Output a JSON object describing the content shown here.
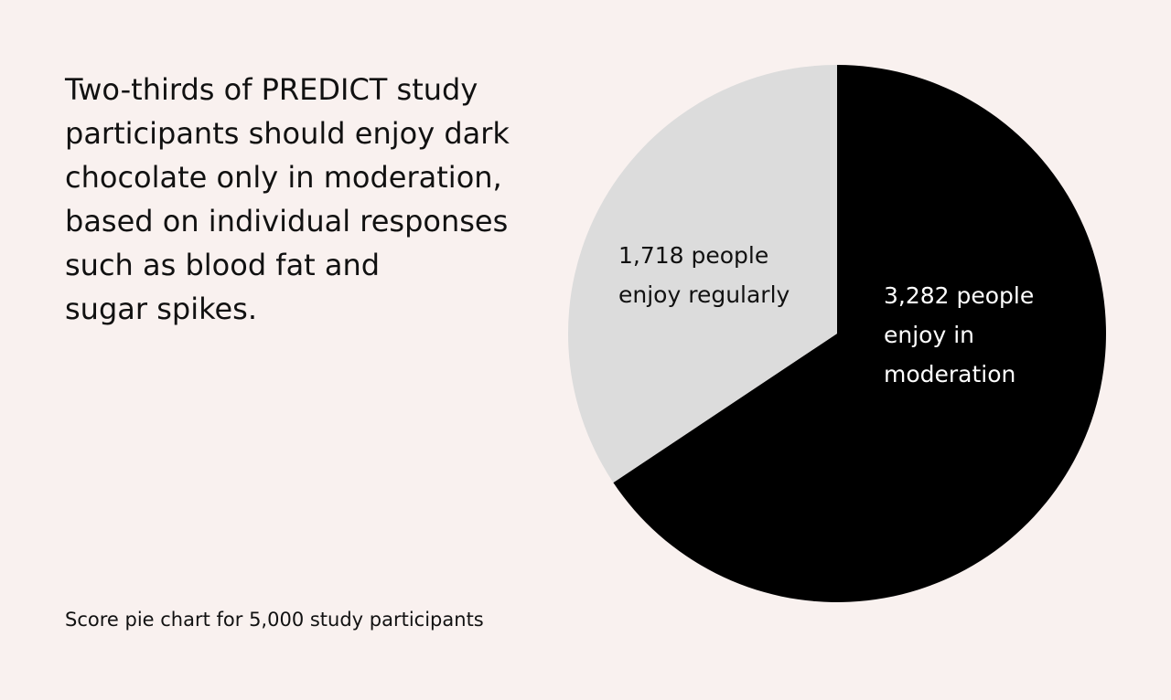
{
  "colors": {
    "background": "#f9f1ef",
    "text": "#111111",
    "moderation_slice": "#000000",
    "regular_slice": "#dcdcdc",
    "moderation_label": "#ffffff",
    "regular_label": "#111111"
  },
  "headline": {
    "lines": [
      "Two-thirds of PREDICT study",
      "participants should enjoy dark",
      "chocolate only in moderation,",
      "based on individual responses",
      "such as blood fat and",
      "sugar spikes."
    ]
  },
  "caption": "Score pie chart for 5,000 study participants",
  "chart_data": {
    "type": "pie",
    "title": "",
    "total": 5000,
    "start_angle_deg": 0,
    "direction": "clockwise",
    "legend": "none",
    "slices": [
      {
        "key": "moderation",
        "value": 3282,
        "label_lines": [
          "3,282 people",
          "enjoy in",
          "moderation"
        ]
      },
      {
        "key": "regular",
        "value": 1718,
        "label_lines": [
          "1,718 people",
          "enjoy regularly"
        ]
      }
    ]
  }
}
